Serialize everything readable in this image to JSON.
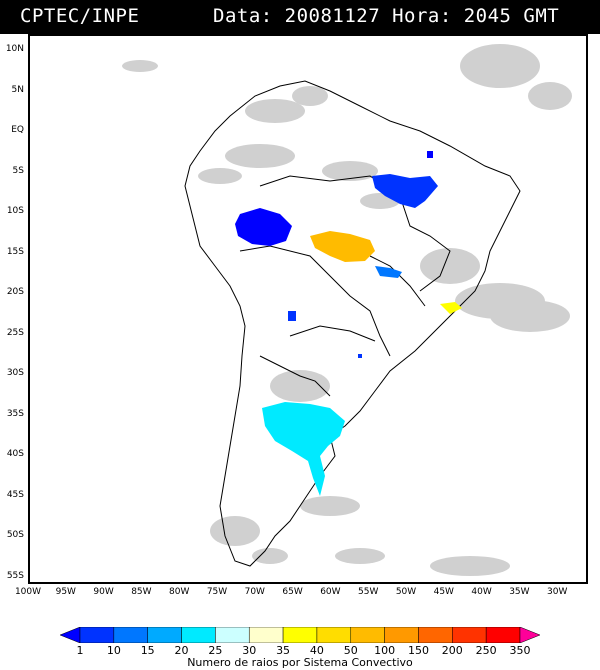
{
  "header": {
    "source": "CPTEC/INPE",
    "datetime": "Data: 20081127 Hora: 2045 GMT"
  },
  "map": {
    "lat_labels": [
      "10N",
      "5N",
      "EQ",
      "5S",
      "10S",
      "15S",
      "20S",
      "25S",
      "30S",
      "35S",
      "40S",
      "45S",
      "50S",
      "55S"
    ],
    "lon_labels": [
      "100W",
      "95W",
      "90W",
      "85W",
      "80W",
      "75W",
      "70W",
      "65W",
      "60W",
      "55W",
      "50W",
      "45W",
      "40W",
      "35W",
      "30W"
    ],
    "convective_systems": [
      {
        "name": "northeast-brazil",
        "class_color": "#0033ff"
      },
      {
        "name": "western-amazon",
        "class_color": "#0000ff"
      },
      {
        "name": "central-brazil",
        "class_color": "#ffbb00"
      },
      {
        "name": "argentina",
        "class_color": "#00eaff"
      },
      {
        "name": "southeast-brazil",
        "class_color": "#ffff00"
      }
    ]
  },
  "colorbar": {
    "labels": [
      "1",
      "10",
      "15",
      "20",
      "25",
      "30",
      "35",
      "40",
      "50",
      "100",
      "150",
      "200",
      "250",
      "350"
    ],
    "colors": [
      "#0000ff",
      "#0033ff",
      "#0077ff",
      "#00aaff",
      "#00eaff",
      "#ccffff",
      "#ffffcc",
      "#ffff00",
      "#ffdd00",
      "#ffbb00",
      "#ff9900",
      "#ff6600",
      "#ff3300",
      "#ff0000",
      "#ff0099"
    ],
    "caption": "Numero de raios por Sistema Convectivo"
  }
}
